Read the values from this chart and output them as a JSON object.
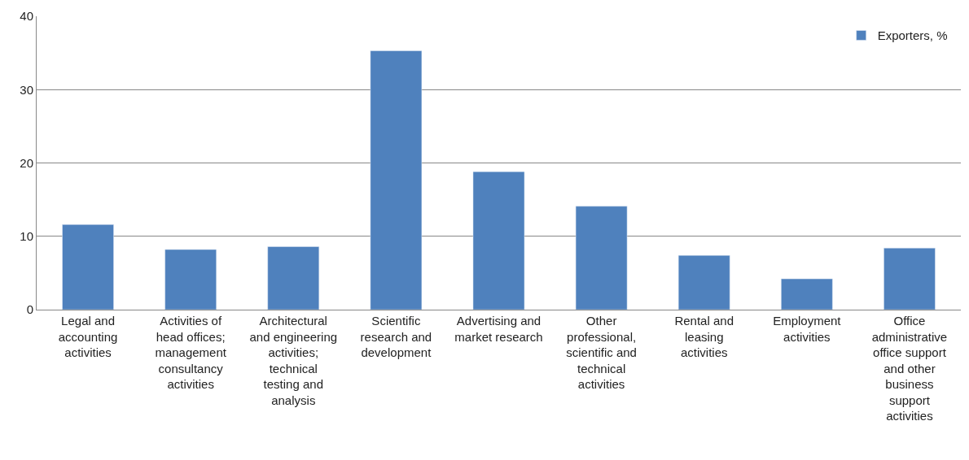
{
  "chart_data": {
    "type": "bar",
    "categories": [
      "Legal and accounting activities",
      "Activities of head offices; management consultancy activities",
      "Architectural and engineering activities; technical testing and analysis",
      "Scientific research and development",
      "Advertising and market research",
      "Other professional, scientific and technical activities",
      "Rental and leasing activities",
      "Employment activities",
      "Office administrative office support and other business support activities"
    ],
    "series": [
      {
        "name": "Exporters, %",
        "color": "#4f81bd",
        "values": [
          11.6,
          8.2,
          8.6,
          35.3,
          18.8,
          14.1,
          7.4,
          4.2,
          8.4
        ]
      }
    ],
    "ylim": [
      0,
      40
    ],
    "yticks": [
      0,
      10,
      20,
      30,
      40
    ],
    "grid": "y",
    "legend": "top right"
  }
}
